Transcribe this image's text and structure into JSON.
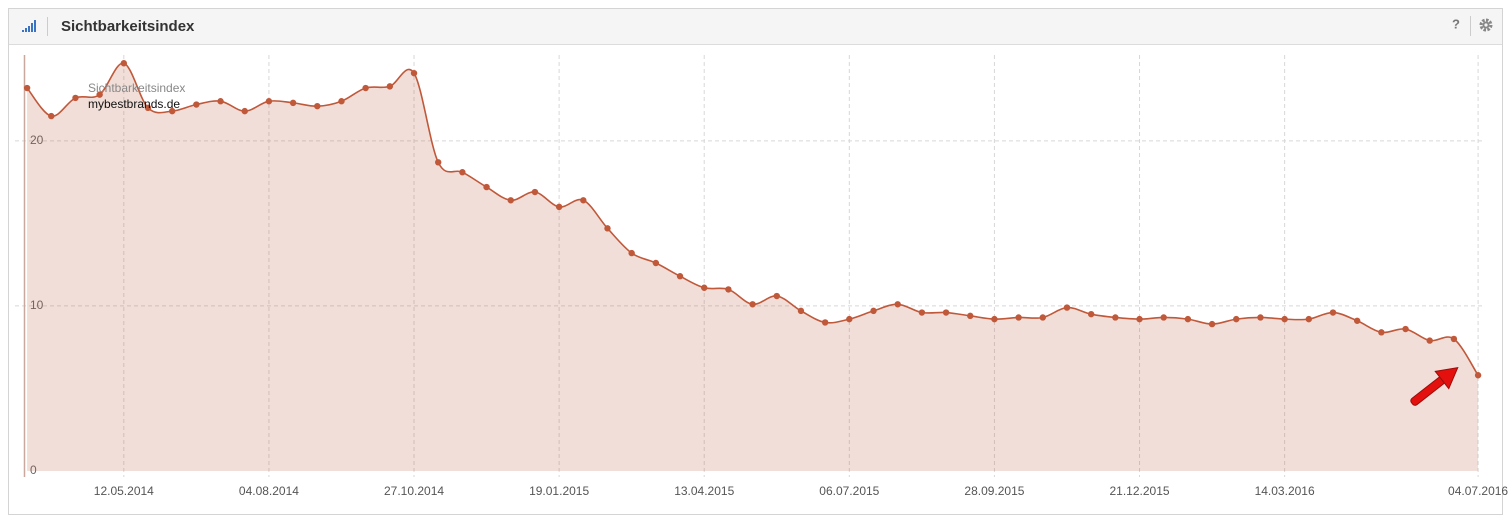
{
  "header": {
    "title": "Sichtbarkeitsindex",
    "help": "?"
  },
  "chart_data": {
    "type": "area",
    "legend_title": "Sichtbarkeitsindex",
    "x": [
      "2014-03-17",
      "2014-03-31",
      "2014-04-14",
      "2014-04-28",
      "2014-05-12",
      "2014-05-26",
      "2014-06-09",
      "2014-06-23",
      "2014-07-07",
      "2014-07-21",
      "2014-08-04",
      "2014-08-18",
      "2014-09-01",
      "2014-09-15",
      "2014-09-29",
      "2014-10-13",
      "2014-10-27",
      "2014-11-10",
      "2014-11-24",
      "2014-12-08",
      "2014-12-22",
      "2015-01-05",
      "2015-01-19",
      "2015-02-02",
      "2015-02-16",
      "2015-03-02",
      "2015-03-16",
      "2015-03-30",
      "2015-04-13",
      "2015-04-27",
      "2015-05-11",
      "2015-05-25",
      "2015-06-08",
      "2015-06-22",
      "2015-07-06",
      "2015-07-20",
      "2015-08-03",
      "2015-08-17",
      "2015-08-31",
      "2015-09-14",
      "2015-09-28",
      "2015-10-12",
      "2015-10-26",
      "2015-11-09",
      "2015-11-23",
      "2015-12-07",
      "2015-12-21",
      "2016-01-04",
      "2016-01-18",
      "2016-02-01",
      "2016-02-15",
      "2016-02-29",
      "2016-03-14",
      "2016-03-28",
      "2016-04-11",
      "2016-04-25",
      "2016-05-09",
      "2016-05-23",
      "2016-06-06",
      "2016-06-20",
      "2016-07-04"
    ],
    "series": [
      {
        "name": "mybestbrands.de",
        "color": "#c0583a",
        "values": [
          23.2,
          21.5,
          22.6,
          22.8,
          24.7,
          22.0,
          21.8,
          22.2,
          22.4,
          21.8,
          22.4,
          22.3,
          22.1,
          22.4,
          23.2,
          23.3,
          24.1,
          18.7,
          18.1,
          17.2,
          16.4,
          16.9,
          16.0,
          16.4,
          14.7,
          13.2,
          12.6,
          11.8,
          11.1,
          11.0,
          10.1,
          10.6,
          9.7,
          9.0,
          9.2,
          9.7,
          10.1,
          9.6,
          9.6,
          9.4,
          9.2,
          9.3,
          9.3,
          9.9,
          9.5,
          9.3,
          9.2,
          9.3,
          9.2,
          8.9,
          9.2,
          9.3,
          9.2,
          9.2,
          9.6,
          9.1,
          8.4,
          8.6,
          7.9,
          8.0,
          5.8
        ]
      }
    ],
    "xlim": [
      "2014-03-10",
      "2016-07-08"
    ],
    "xticks": [
      {
        "value": "2014-05-12",
        "label": "12.05.2014"
      },
      {
        "value": "2014-08-04",
        "label": "04.08.2014"
      },
      {
        "value": "2014-10-27",
        "label": "27.10.2014"
      },
      {
        "value": "2015-01-19",
        "label": "19.01.2015"
      },
      {
        "value": "2015-04-13",
        "label": "13.04.2015"
      },
      {
        "value": "2015-07-06",
        "label": "06.07.2015"
      },
      {
        "value": "2015-09-28",
        "label": "28.09.2015"
      },
      {
        "value": "2015-12-21",
        "label": "21.12.2015"
      },
      {
        "value": "2016-03-14",
        "label": "14.03.2016"
      },
      {
        "value": "2016-07-04",
        "label": "04.07.2016"
      }
    ],
    "ylim": [
      0,
      25.2
    ],
    "yticks": [
      0,
      10,
      20
    ],
    "grid": true
  }
}
